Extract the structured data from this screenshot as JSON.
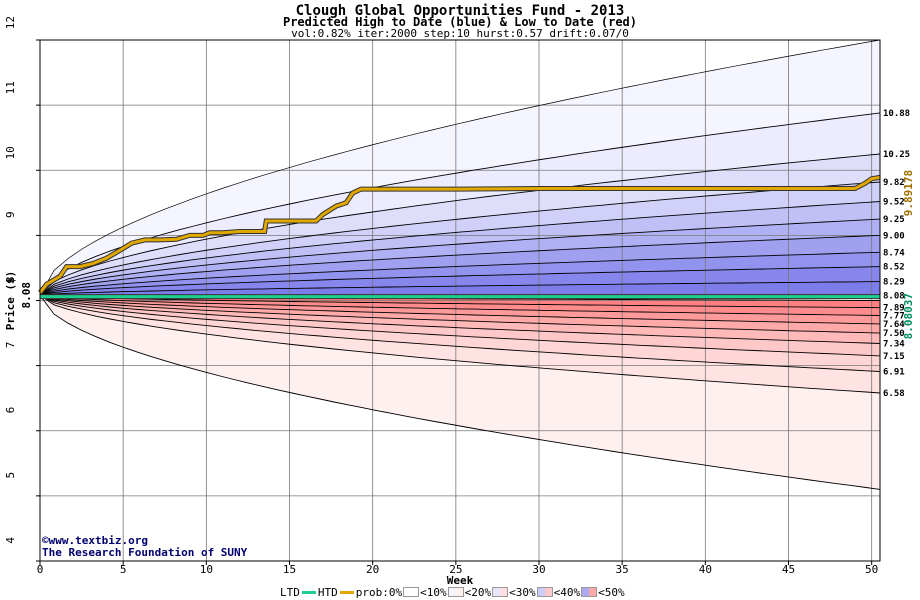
{
  "title": "Clough Global Opportunities Fund - 2013",
  "subtitle": "Predicted High to Date (blue) &  Low to Date (red)",
  "params": "vol:0.82% iter:2000 step:10 hurst:0.57 drift:0.07/0",
  "credit": {
    "website": "www.textbiz.org",
    "org": "The Research Foundation of SUNY"
  },
  "legend": {
    "ltd": "LTD",
    "htd": "HTD",
    "prob": "prob:0%",
    "b10": "<10%",
    "b20": "<20%",
    "b30": "<30%",
    "b40": "<40%",
    "b50": "<50%"
  },
  "colors": {
    "htd": "#1fcf8f",
    "ltd": "#e0a800",
    "blue_bands": [
      "#f4f4ff",
      "#e6e6fd",
      "#ccccfa",
      "#aaaaf4",
      "#8c8cef"
    ],
    "red_bands": [
      "#fff0f0",
      "#ffe0e0",
      "#ffcaca",
      "#ffa8a8",
      "#ff8a8a"
    ],
    "right_value_high": "#a07000",
    "right_value_low": "#009060"
  },
  "chart_data": {
    "type": "area",
    "xlabel": "Week",
    "ylabel": "Price ($)",
    "xlim": [
      0,
      50.5
    ],
    "ylim": [
      4,
      12
    ],
    "x_ticks": [
      0,
      5,
      10,
      15,
      20,
      25,
      30,
      35,
      40,
      45,
      50
    ],
    "y_ticks": [
      4,
      5,
      6,
      7,
      8,
      9,
      10,
      11,
      12
    ],
    "grid": true,
    "start_value": "8.08",
    "upper_percentile_end_values": [
      "12.00",
      "10.88",
      "10.25",
      "9.82",
      "9.52",
      "9.25",
      "9.00",
      "8.74",
      "8.52",
      "8.29",
      "8.08"
    ],
    "lower_percentile_end_values": [
      "8.00",
      "7.89",
      "7.77",
      "7.64",
      "7.50",
      "7.34",
      "7.15",
      "6.91",
      "6.58",
      "5.10"
    ],
    "right_labels": [
      "10.88",
      "10.25",
      "9.82",
      "9.52",
      "9.25",
      "9.00",
      "8.74",
      "8.52",
      "8.29",
      "8.08",
      "7.89",
      "7.77",
      "7.64",
      "7.50",
      "7.34",
      "7.15",
      "6.91",
      "6.58"
    ],
    "highlighted_high": "9.89178",
    "highlighted_low": "8.08037",
    "actual_high_series": {
      "x": [
        0,
        0.4,
        1.2,
        1.6,
        2.4,
        3.2,
        4.0,
        4.6,
        5.0,
        5.5,
        6.3,
        7.2,
        8.2,
        9.0,
        9.8,
        10.2,
        11.0,
        12.0,
        13.5,
        13.6,
        14.0,
        15.0,
        16.6,
        17.0,
        17.8,
        18.4,
        18.8,
        19.3,
        20.5,
        25.0,
        30.0,
        40.0,
        49.0,
        49.6,
        50.0,
        50.5
      ],
      "y": [
        8.12,
        8.25,
        8.37,
        8.52,
        8.52,
        8.57,
        8.65,
        8.74,
        8.8,
        8.88,
        8.93,
        8.93,
        8.94,
        9.0,
        9.0,
        9.04,
        9.04,
        9.06,
        9.06,
        9.22,
        9.22,
        9.22,
        9.22,
        9.32,
        9.45,
        9.5,
        9.65,
        9.71,
        9.71,
        9.71,
        9.72,
        9.72,
        9.72,
        9.8,
        9.87,
        9.89
      ]
    },
    "actual_low_series": {
      "x": [
        0,
        50.5
      ],
      "y": [
        8.06,
        8.06
      ]
    }
  }
}
